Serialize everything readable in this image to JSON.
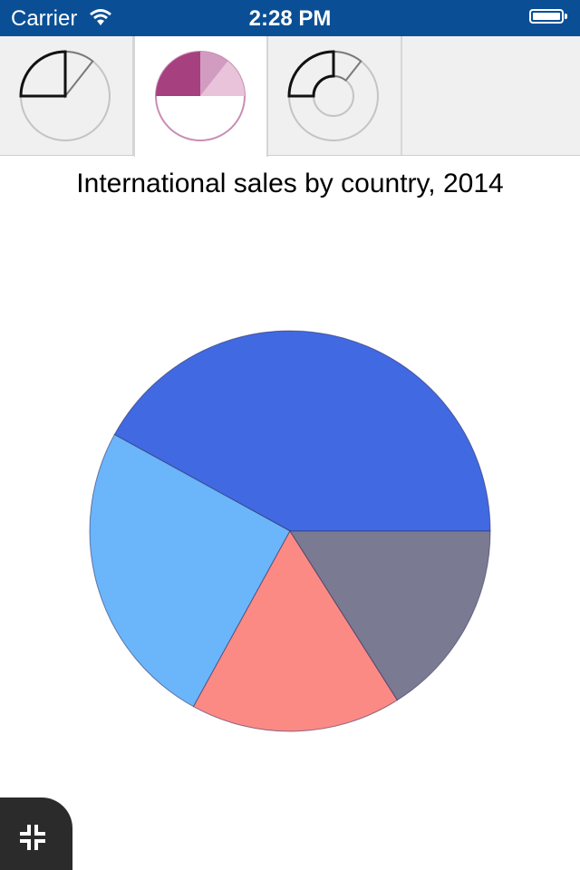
{
  "status_bar": {
    "carrier": "Carrier",
    "time": "2:28 PM"
  },
  "tabs": [
    {
      "id": "pie-outline",
      "icon": "pie-chart-outline-icon",
      "active": false
    },
    {
      "id": "pie-filled",
      "icon": "pie-chart-filled-icon",
      "active": true
    },
    {
      "id": "doughnut",
      "icon": "doughnut-chart-icon",
      "active": false
    }
  ],
  "chart_data": {
    "type": "pie",
    "title": "International sales by country, 2014",
    "series": [
      {
        "values": [
          42,
          25,
          17,
          16
        ],
        "colors": [
          "#4169e1",
          "#6bb5fb",
          "#fb8a85",
          "#7a7a92"
        ]
      }
    ]
  },
  "fab": {
    "icon": "collapse-icon"
  }
}
